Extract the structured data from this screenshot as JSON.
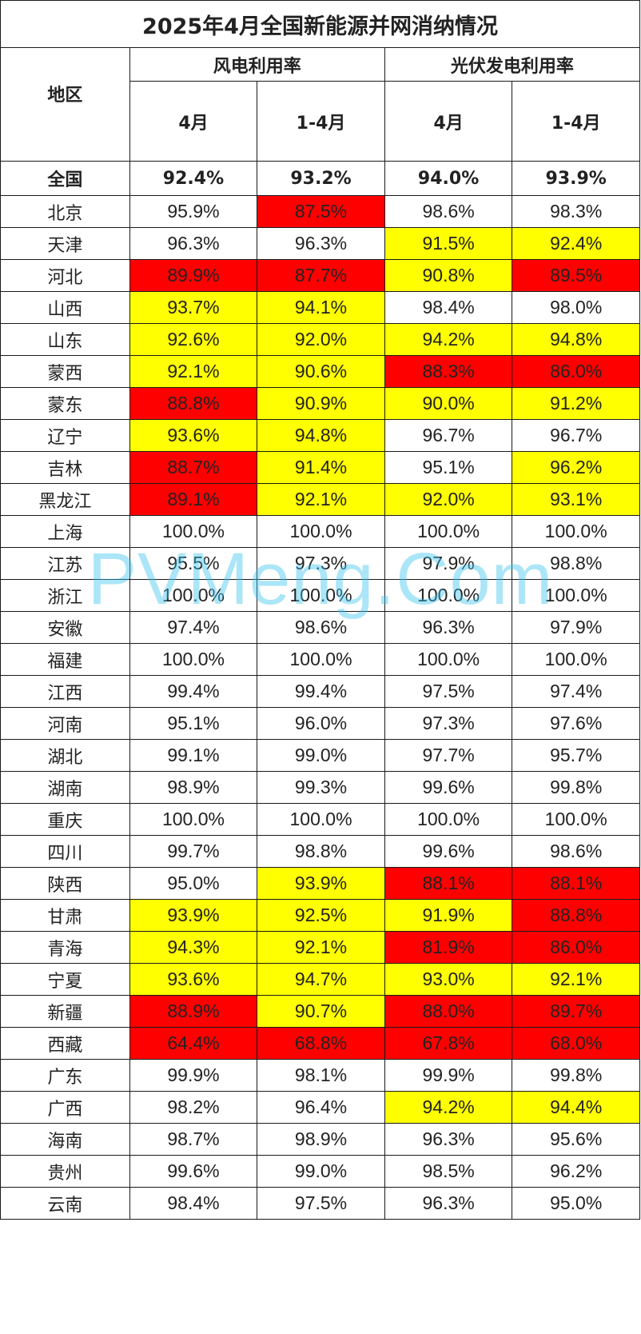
{
  "title": "2025年4月全国新能源并网消纳情况",
  "headers": {
    "region": "地区",
    "wind": "风电利用率",
    "solar": "光伏发电利用率",
    "sub": [
      "4月",
      "1-4月",
      "4月",
      "1-4月"
    ]
  },
  "national": {
    "region": "全国",
    "values": [
      "92.4%",
      "93.2%",
      "94.0%",
      "93.9%"
    ]
  },
  "rows": [
    {
      "region": "北京",
      "values": [
        "95.9%",
        "87.5%",
        "98.6%",
        "98.3%"
      ],
      "hl": [
        "",
        "red",
        "",
        ""
      ]
    },
    {
      "region": "天津",
      "values": [
        "96.3%",
        "96.3%",
        "91.5%",
        "92.4%"
      ],
      "hl": [
        "",
        "",
        "yellow",
        "yellow"
      ]
    },
    {
      "region": "河北",
      "values": [
        "89.9%",
        "87.7%",
        "90.8%",
        "89.5%"
      ],
      "hl": [
        "red",
        "red",
        "yellow",
        "red"
      ]
    },
    {
      "region": "山西",
      "values": [
        "93.7%",
        "94.1%",
        "98.4%",
        "98.0%"
      ],
      "hl": [
        "yellow",
        "yellow",
        "",
        ""
      ]
    },
    {
      "region": "山东",
      "values": [
        "92.6%",
        "92.0%",
        "94.2%",
        "94.8%"
      ],
      "hl": [
        "yellow",
        "yellow",
        "yellow",
        "yellow"
      ]
    },
    {
      "region": "蒙西",
      "values": [
        "92.1%",
        "90.6%",
        "88.3%",
        "86.0%"
      ],
      "hl": [
        "yellow",
        "yellow",
        "red",
        "red"
      ]
    },
    {
      "region": "蒙东",
      "values": [
        "88.8%",
        "90.9%",
        "90.0%",
        "91.2%"
      ],
      "hl": [
        "red",
        "yellow",
        "yellow",
        "yellow"
      ]
    },
    {
      "region": "辽宁",
      "values": [
        "93.6%",
        "94.8%",
        "96.7%",
        "96.7%"
      ],
      "hl": [
        "yellow",
        "yellow",
        "",
        ""
      ]
    },
    {
      "region": "吉林",
      "values": [
        "88.7%",
        "91.4%",
        "95.1%",
        "96.2%"
      ],
      "hl": [
        "red",
        "yellow",
        "",
        "yellow"
      ]
    },
    {
      "region": "黑龙江",
      "values": [
        "89.1%",
        "92.1%",
        "92.0%",
        "93.1%"
      ],
      "hl": [
        "red",
        "yellow",
        "yellow",
        "yellow"
      ]
    },
    {
      "region": "上海",
      "values": [
        "100.0%",
        "100.0%",
        "100.0%",
        "100.0%"
      ],
      "hl": [
        "",
        "",
        "",
        ""
      ]
    },
    {
      "region": "江苏",
      "values": [
        "95.5%",
        "97.3%",
        "97.9%",
        "98.8%"
      ],
      "hl": [
        "",
        "",
        "",
        ""
      ]
    },
    {
      "region": "浙江",
      "values": [
        "100.0%",
        "100.0%",
        "100.0%",
        "100.0%"
      ],
      "hl": [
        "",
        "",
        "",
        ""
      ]
    },
    {
      "region": "安徽",
      "values": [
        "97.4%",
        "98.6%",
        "96.3%",
        "97.9%"
      ],
      "hl": [
        "",
        "",
        "",
        ""
      ]
    },
    {
      "region": "福建",
      "values": [
        "100.0%",
        "100.0%",
        "100.0%",
        "100.0%"
      ],
      "hl": [
        "",
        "",
        "",
        ""
      ]
    },
    {
      "region": "江西",
      "values": [
        "99.4%",
        "99.4%",
        "97.5%",
        "97.4%"
      ],
      "hl": [
        "",
        "",
        "",
        ""
      ]
    },
    {
      "region": "河南",
      "values": [
        "95.1%",
        "96.0%",
        "97.3%",
        "97.6%"
      ],
      "hl": [
        "",
        "",
        "",
        ""
      ]
    },
    {
      "region": "湖北",
      "values": [
        "99.1%",
        "99.0%",
        "97.7%",
        "95.7%"
      ],
      "hl": [
        "",
        "",
        "",
        ""
      ]
    },
    {
      "region": "湖南",
      "values": [
        "98.9%",
        "99.3%",
        "99.6%",
        "99.8%"
      ],
      "hl": [
        "",
        "",
        "",
        ""
      ]
    },
    {
      "region": "重庆",
      "values": [
        "100.0%",
        "100.0%",
        "100.0%",
        "100.0%"
      ],
      "hl": [
        "",
        "",
        "",
        ""
      ]
    },
    {
      "region": "四川",
      "values": [
        "99.7%",
        "98.8%",
        "99.6%",
        "98.6%"
      ],
      "hl": [
        "",
        "",
        "",
        ""
      ]
    },
    {
      "region": "陕西",
      "values": [
        "95.0%",
        "93.9%",
        "88.1%",
        "88.1%"
      ],
      "hl": [
        "",
        "yellow",
        "red",
        "red"
      ]
    },
    {
      "region": "甘肃",
      "values": [
        "93.9%",
        "92.5%",
        "91.9%",
        "88.8%"
      ],
      "hl": [
        "yellow",
        "yellow",
        "yellow",
        "red"
      ]
    },
    {
      "region": "青海",
      "values": [
        "94.3%",
        "92.1%",
        "81.9%",
        "86.0%"
      ],
      "hl": [
        "yellow",
        "yellow",
        "red",
        "red"
      ]
    },
    {
      "region": "宁夏",
      "values": [
        "93.6%",
        "94.7%",
        "93.0%",
        "92.1%"
      ],
      "hl": [
        "yellow",
        "yellow",
        "yellow",
        "yellow"
      ]
    },
    {
      "region": "新疆",
      "values": [
        "88.9%",
        "90.7%",
        "88.0%",
        "89.7%"
      ],
      "hl": [
        "red",
        "yellow",
        "red",
        "red"
      ]
    },
    {
      "region": "西藏",
      "values": [
        "64.4%",
        "68.8%",
        "67.8%",
        "68.0%"
      ],
      "hl": [
        "red",
        "red",
        "red",
        "red"
      ]
    },
    {
      "region": "广东",
      "values": [
        "99.9%",
        "98.1%",
        "99.9%",
        "99.8%"
      ],
      "hl": [
        "",
        "",
        "",
        ""
      ]
    },
    {
      "region": "广西",
      "values": [
        "98.2%",
        "96.4%",
        "94.2%",
        "94.4%"
      ],
      "hl": [
        "",
        "",
        "yellow",
        "yellow"
      ]
    },
    {
      "region": "海南",
      "values": [
        "98.7%",
        "98.9%",
        "96.3%",
        "95.6%"
      ],
      "hl": [
        "",
        "",
        "",
        ""
      ]
    },
    {
      "region": "贵州",
      "values": [
        "99.6%",
        "99.0%",
        "98.5%",
        "96.2%"
      ],
      "hl": [
        "",
        "",
        "",
        ""
      ]
    },
    {
      "region": "云南",
      "values": [
        "98.4%",
        "97.5%",
        "96.3%",
        "95.0%"
      ],
      "hl": [
        "",
        "",
        "",
        ""
      ]
    }
  ],
  "watermark": "PVMeng.Com",
  "colors": {
    "red": "#ff0000",
    "yellow": "#ffff00",
    "border": "#1a1a1a",
    "watermark": "#38c2f0"
  }
}
